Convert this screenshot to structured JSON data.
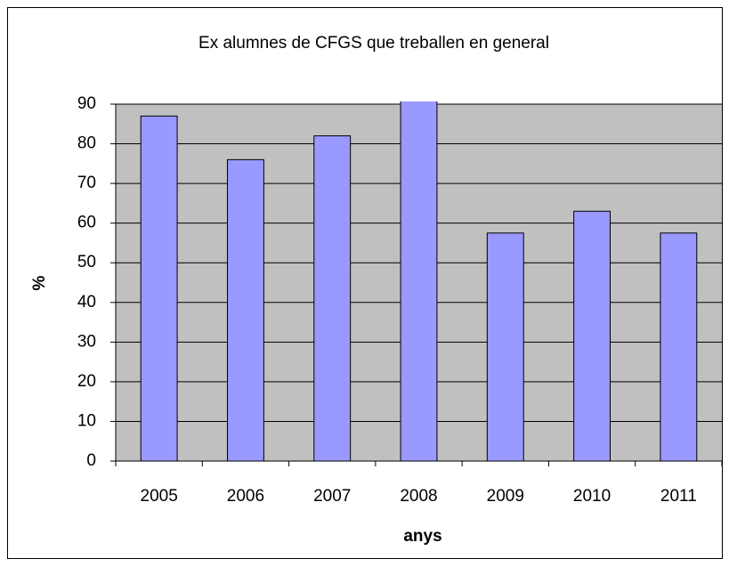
{
  "chart_data": {
    "type": "bar",
    "title": "Ex alumnes de CFGS que treballen en general",
    "x_label": "anys",
    "y_label": "%",
    "categories": [
      "2005",
      "2006",
      "2007",
      "2008",
      "2009",
      "2010",
      "2011"
    ],
    "values": [
      87,
      76,
      82,
      91,
      57.5,
      63,
      57.5
    ],
    "color": "#9999ff",
    "ylim": [
      0,
      90
    ],
    "yticks": [
      0,
      10,
      20,
      30,
      40,
      50,
      60,
      70,
      80,
      90
    ],
    "grid": true
  }
}
